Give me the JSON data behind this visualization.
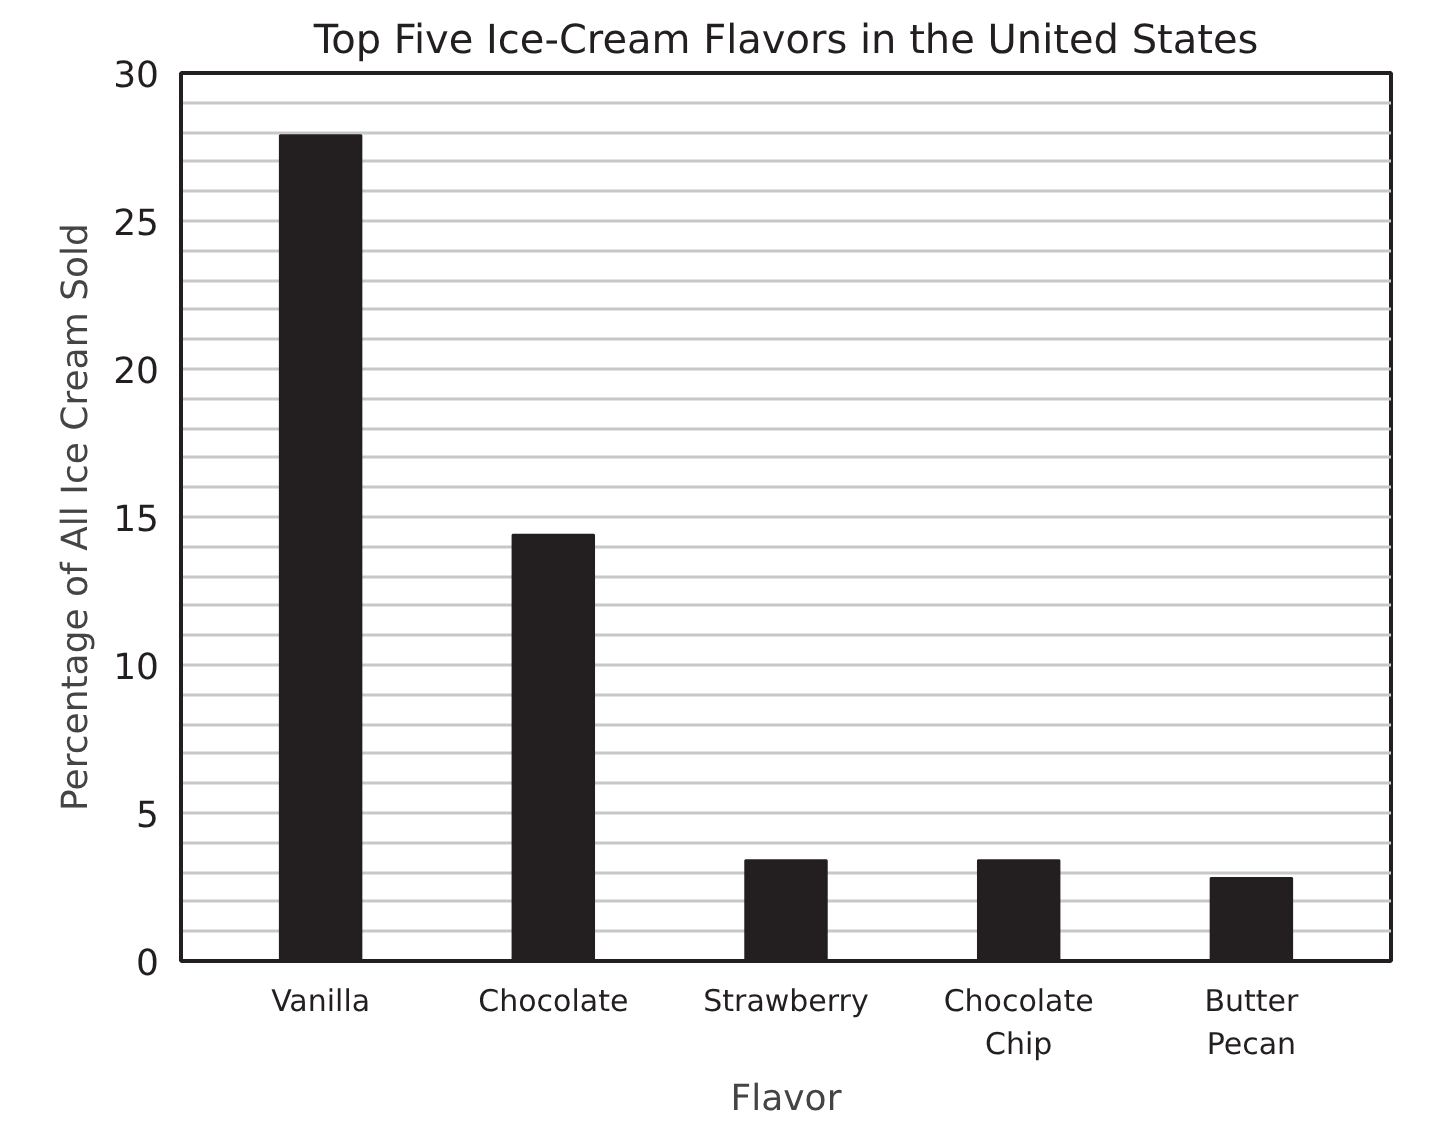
{
  "chart_data": {
    "type": "bar",
    "title": "Top Five Ice-Cream Flavors in the United States",
    "xlabel": "Flavor",
    "ylabel": "Percentage of All Ice Cream Sold",
    "categories": [
      "Vanilla",
      "Chocolate",
      "Strawberry",
      "Chocolate\nChip",
      "Butter\nPecan"
    ],
    "values": [
      27.9,
      14.4,
      3.4,
      3.4,
      2.8
    ],
    "color": "#231f20",
    "ylim": [
      0,
      30
    ],
    "yticks": [
      0,
      {
        "value": 1,
        "label": null
      },
      {
        "value": 2,
        "label": null
      },
      {
        "value": 3,
        "label": null
      },
      {
        "value": 4,
        "label": null
      },
      5,
      {
        "value": 6,
        "label": null
      },
      {
        "value": 7,
        "label": null
      },
      {
        "value": 8,
        "label": null
      },
      {
        "value": 9,
        "label": null
      },
      10,
      {
        "value": 11,
        "label": null
      },
      {
        "value": 12,
        "label": null
      },
      {
        "value": 13,
        "label": null
      },
      {
        "value": 14,
        "label": null
      },
      15,
      {
        "value": 16,
        "label": null
      },
      {
        "value": 17,
        "label": null
      },
      {
        "value": 18,
        "label": null
      },
      {
        "value": 19,
        "label": null
      },
      20,
      {
        "value": 21,
        "label": null
      },
      {
        "value": 22,
        "label": null
      },
      {
        "value": 23,
        "label": null
      },
      {
        "value": 24,
        "label": null
      },
      25,
      {
        "value": 26,
        "label": null
      },
      {
        "value": 27,
        "label": null
      },
      {
        "value": 28,
        "label": null
      },
      {
        "value": 29,
        "label": null
      },
      30
    ],
    "grid": "y"
  }
}
